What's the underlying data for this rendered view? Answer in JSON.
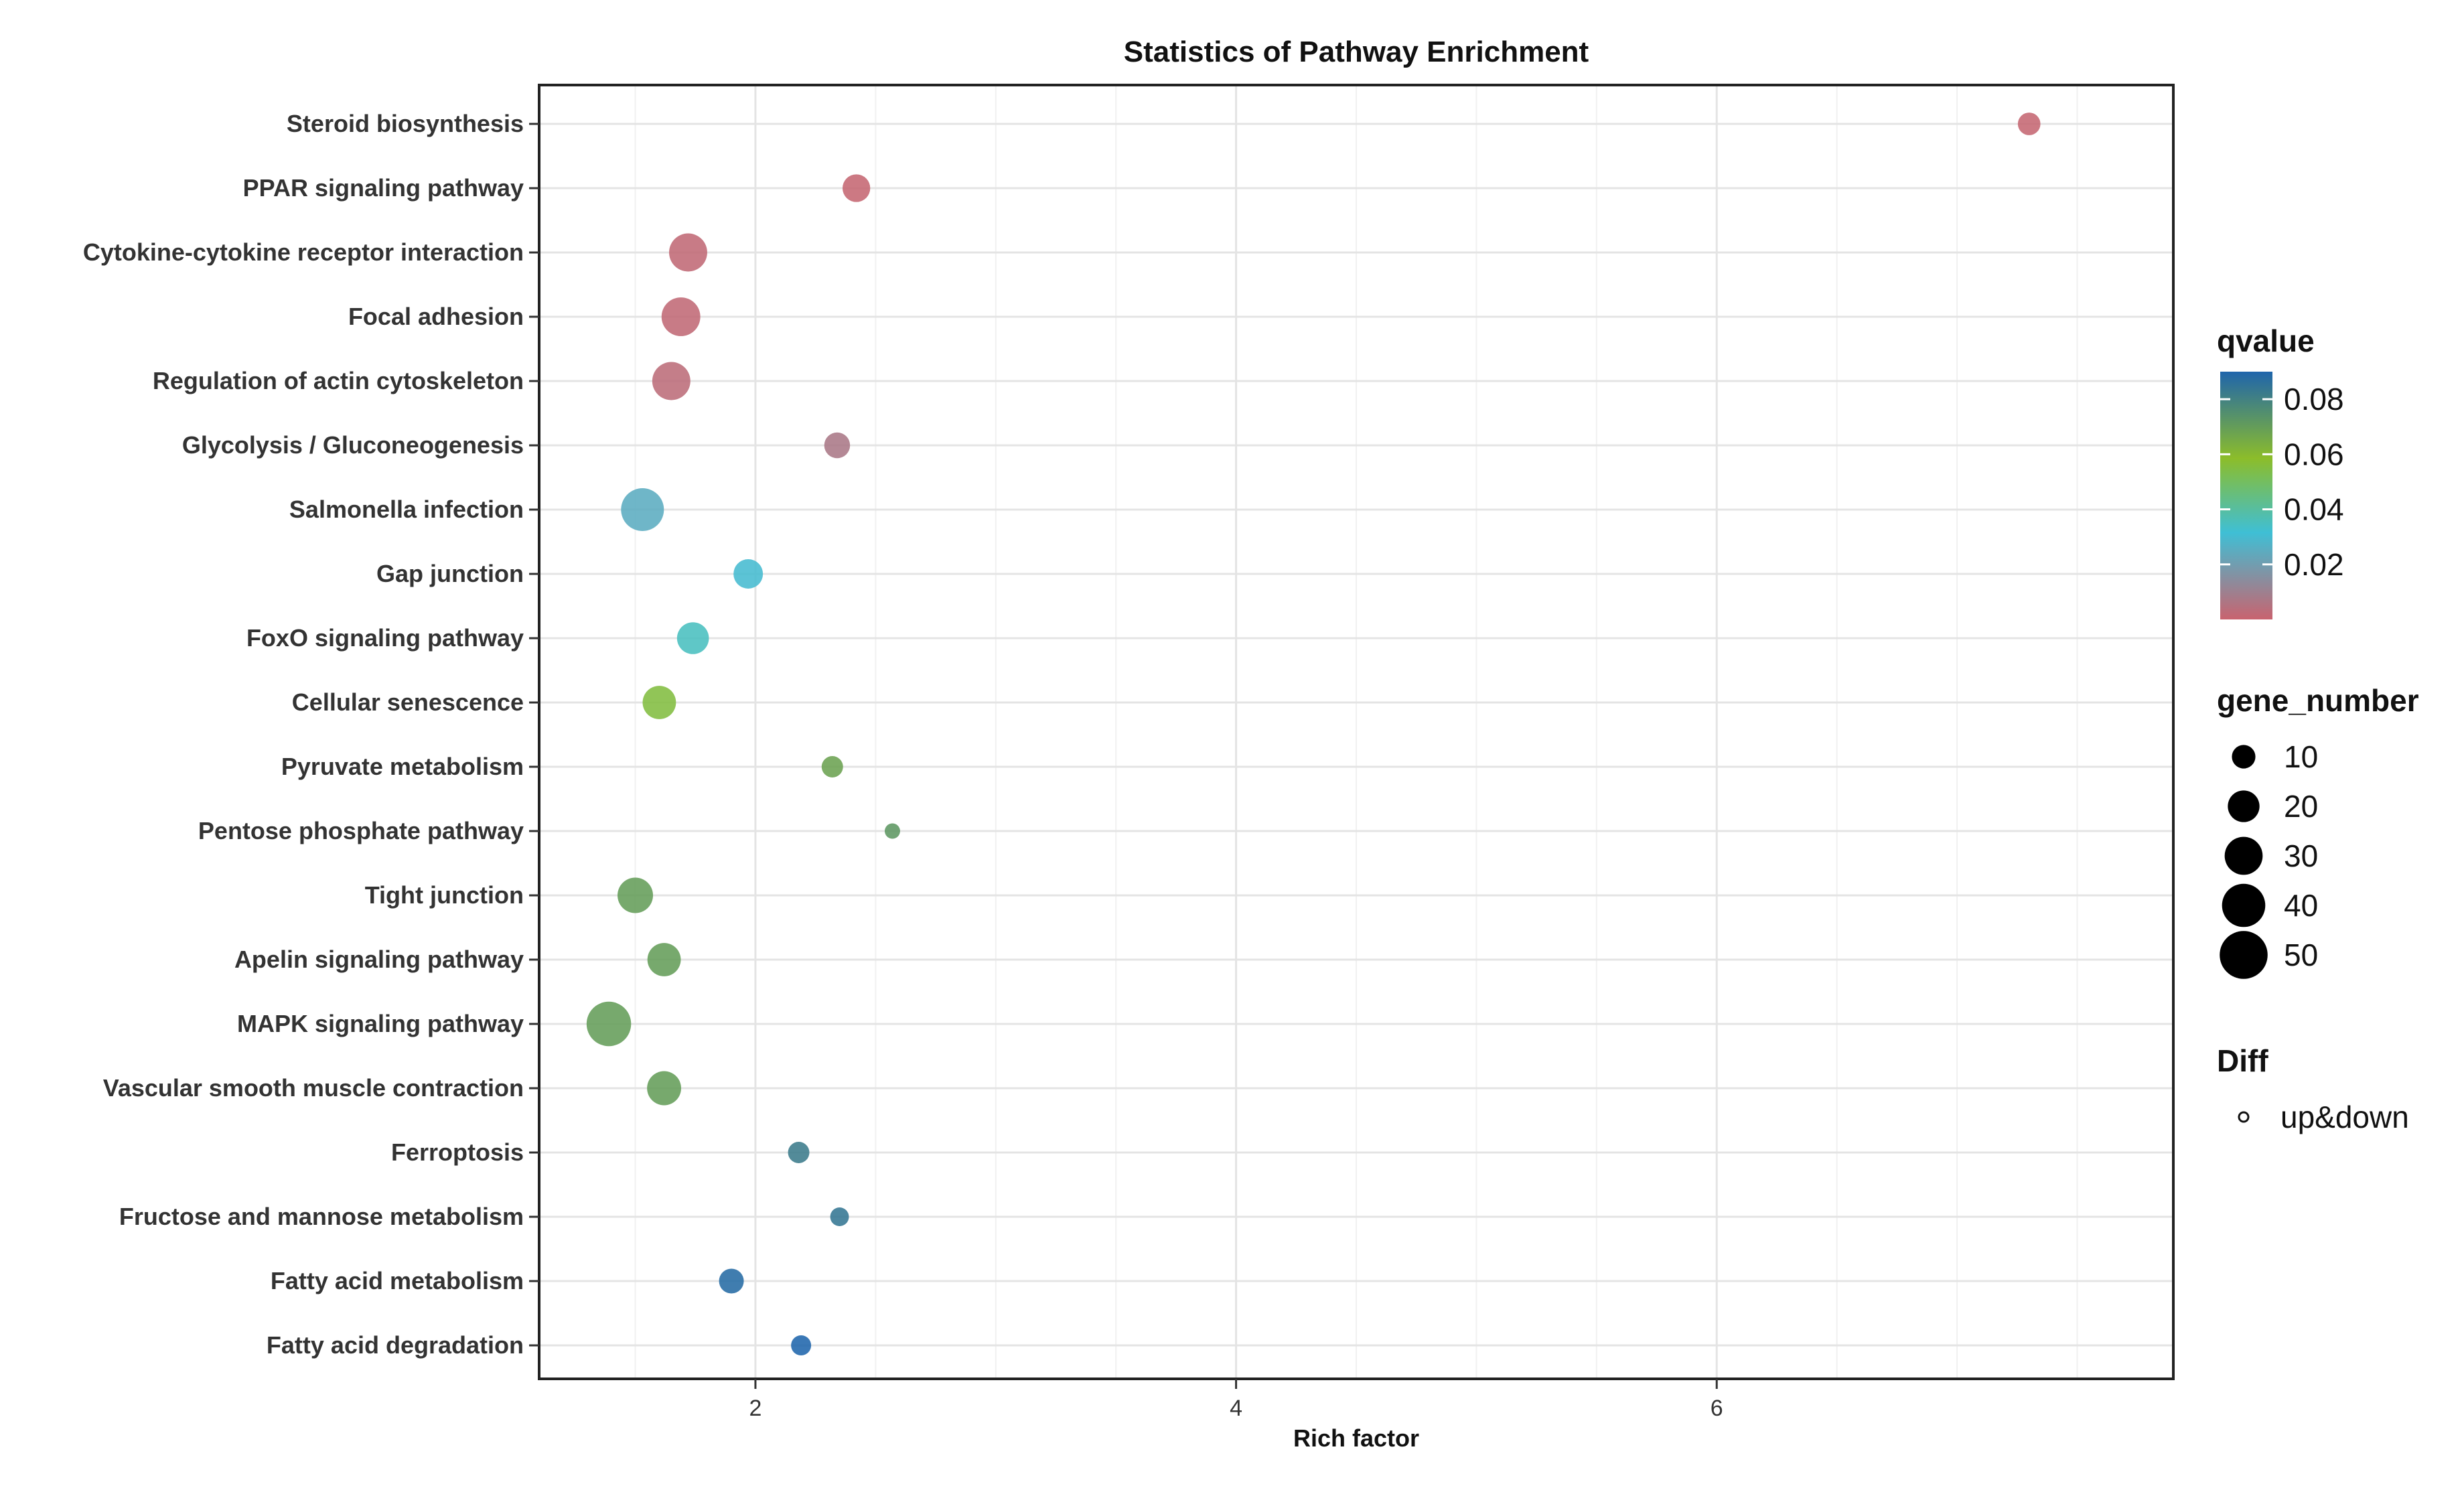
{
  "chart_data": {
    "type": "scatter",
    "title": "Statistics of Pathway Enrichment",
    "xlabel": "Rich factor",
    "ylabel": "",
    "xlim": [
      1.1,
      7.9
    ],
    "x_ticks": [
      2,
      4,
      6
    ],
    "grid": true,
    "categories": [
      "Steroid biosynthesis",
      "PPAR signaling pathway",
      "Cytokine-cytokine receptor interaction",
      "Focal adhesion",
      "Regulation of actin cytoskeleton",
      "Glycolysis / Gluconeogenesis",
      "Salmonella infection",
      "Gap junction",
      "FoxO signaling pathway",
      "Cellular senescence",
      "Pyruvate metabolism",
      "Pentose phosphate pathway",
      "Tight junction",
      "Apelin signaling pathway",
      "MAPK signaling pathway",
      "Vascular smooth muscle contraction",
      "Ferroptosis",
      "Fructose and mannose metabolism",
      "Fatty acid metabolism",
      "Fatty acid degradation"
    ],
    "x": [
      7.3,
      2.42,
      1.72,
      1.69,
      1.65,
      2.34,
      1.53,
      1.97,
      1.74,
      1.6,
      2.32,
      2.57,
      1.5,
      1.62,
      1.39,
      1.62,
      2.18,
      2.35,
      1.9,
      2.19
    ],
    "qvalue": [
      0.001,
      0.001,
      0.002,
      0.002,
      0.003,
      0.007,
      0.025,
      0.03,
      0.035,
      0.055,
      0.068,
      0.072,
      0.07,
      0.07,
      0.07,
      0.07,
      0.082,
      0.084,
      0.088,
      0.09
    ],
    "gene_number": [
      8,
      13,
      27,
      28,
      27,
      11,
      35,
      15,
      18,
      20,
      7,
      3,
      23,
      20,
      38,
      21,
      7,
      5,
      10,
      6
    ],
    "legend_position": "right",
    "color_legend": {
      "title": "qvalue",
      "ticks": [
        "0.08",
        "0.06",
        "0.04",
        "0.02"
      ],
      "tick_values": [
        0.08,
        0.06,
        0.04,
        0.02
      ],
      "range": [
        0,
        0.09
      ],
      "colors": [
        "#c9636f",
        "#3fbfd5",
        "#8cbd2a",
        "#1f65ac"
      ]
    },
    "size_legend": {
      "title": "gene_number",
      "values": [
        10,
        20,
        30,
        40,
        50
      ],
      "labels": [
        "10",
        "20",
        "30",
        "40",
        "50"
      ]
    },
    "shape_legend": {
      "title": "Diff",
      "labels": [
        "up&down"
      ]
    }
  }
}
